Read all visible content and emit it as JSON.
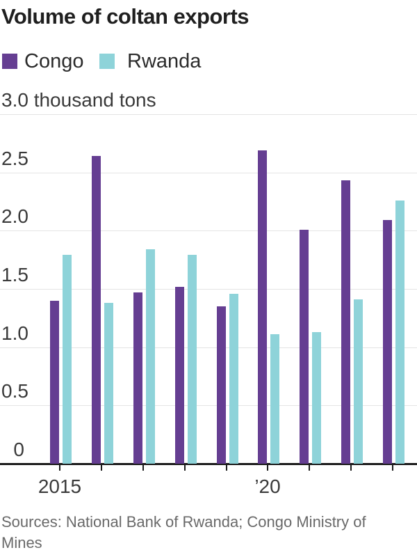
{
  "header": {
    "title": "Volume of coltan exports"
  },
  "legend": {
    "items": [
      {
        "label": "Congo",
        "color": "#653e92"
      },
      {
        "label": "Rwanda",
        "color": "#8ed3d9"
      }
    ]
  },
  "chart_data": {
    "type": "bar",
    "title": "Volume of coltan exports",
    "unit_label": "3.0 thousand tons",
    "ylabel": "thousand tons",
    "xlabel": "",
    "categories": [
      "2015",
      "2016",
      "2017",
      "2018",
      "2019",
      "2020",
      "2021",
      "2022",
      "2023"
    ],
    "xtick_labels": [
      "2015",
      "",
      "",
      "",
      "",
      "’20",
      "",
      "",
      ""
    ],
    "series": [
      {
        "name": "Congo",
        "color": "#653e92",
        "values": [
          1.4,
          2.64,
          1.47,
          1.52,
          1.35,
          2.69,
          2.01,
          2.43,
          2.09
        ]
      },
      {
        "name": "Rwanda",
        "color": "#8ed3d9",
        "values": [
          1.79,
          1.38,
          1.84,
          1.79,
          1.46,
          1.11,
          1.13,
          1.41,
          2.26
        ]
      }
    ],
    "ylim": [
      0,
      3.0
    ],
    "ytick_values": [
      0,
      0.5,
      1.0,
      1.5,
      2.0,
      2.5
    ],
    "ytick_labels": [
      "0",
      "0.5",
      "1.0",
      "1.5",
      "2.0",
      "2.5"
    ],
    "grid": true,
    "legend_position": "top"
  },
  "footer": {
    "sources": "Sources: National Bank of Rwanda; Congo Ministry of Mines"
  }
}
